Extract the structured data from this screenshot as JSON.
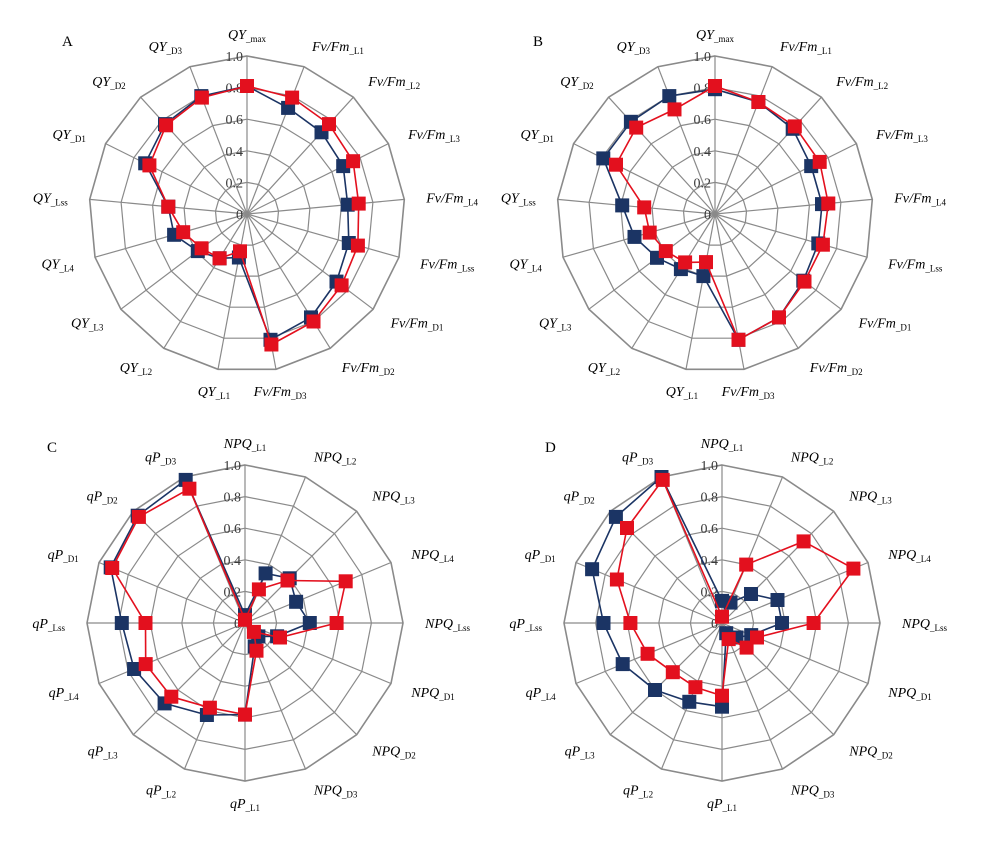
{
  "figure": {
    "series_colors": {
      "dark": "#1b3464",
      "red": "#e3101e"
    },
    "grid_color": "#8a8a8a"
  },
  "chart_data": [
    {
      "type": "radar",
      "panel": "A",
      "rlim": [
        0,
        1
      ],
      "ticks": [
        "0",
        "0.2",
        "0.4",
        "0.6",
        "0.8",
        "1.0"
      ],
      "axes": [
        {
          "main": "QY",
          "sub": "_max"
        },
        {
          "main": "Fv/Fm",
          "sub": "_L1"
        },
        {
          "main": "Fv/Fm",
          "sub": "_L2"
        },
        {
          "main": "Fv/Fm",
          "sub": "_L3"
        },
        {
          "main": "Fv/Fm",
          "sub": "_L4"
        },
        {
          "main": "Fv/Fm",
          "sub": "_Lss"
        },
        {
          "main": "Fv/Fm",
          "sub": "_D1"
        },
        {
          "main": "Fv/Fm",
          "sub": "_D2"
        },
        {
          "main": "Fv/Fm",
          "sub": "_D3"
        },
        {
          "main": "QY",
          "sub": "_L1"
        },
        {
          "main": "QY",
          "sub": "_L2"
        },
        {
          "main": "QY",
          "sub": "_L3"
        },
        {
          "main": "QY",
          "sub": "_L4"
        },
        {
          "main": "QY",
          "sub": "_Lss"
        },
        {
          "main": "QY",
          "sub": "_D1"
        },
        {
          "main": "QY",
          "sub": "_D2"
        },
        {
          "main": "QY",
          "sub": "_D3"
        }
      ],
      "series": [
        {
          "color": "dark",
          "values": [
            0.81,
            0.72,
            0.7,
            0.68,
            0.64,
            0.67,
            0.71,
            0.77,
            0.81,
            0.28,
            0.33,
            0.39,
            0.48,
            0.5,
            0.72,
            0.77,
            0.8
          ]
        },
        {
          "color": "red",
          "values": [
            0.81,
            0.79,
            0.77,
            0.75,
            0.71,
            0.73,
            0.75,
            0.8,
            0.84,
            0.24,
            0.33,
            0.36,
            0.42,
            0.5,
            0.69,
            0.76,
            0.79
          ]
        }
      ]
    },
    {
      "type": "radar",
      "panel": "B",
      "rlim": [
        0,
        1
      ],
      "ticks": [
        "0",
        "0.2",
        "0.4",
        "0.6",
        "0.8",
        "1.0"
      ],
      "axes": [
        {
          "main": "QY",
          "sub": "_max"
        },
        {
          "main": "Fv/Fm",
          "sub": "_L1"
        },
        {
          "main": "Fv/Fm",
          "sub": "_L2"
        },
        {
          "main": "Fv/Fm",
          "sub": "_L3"
        },
        {
          "main": "Fv/Fm",
          "sub": "_L4"
        },
        {
          "main": "Fv/Fm",
          "sub": "_Lss"
        },
        {
          "main": "Fv/Fm",
          "sub": "_D1"
        },
        {
          "main": "Fv/Fm",
          "sub": "_D2"
        },
        {
          "main": "Fv/Fm",
          "sub": "_D3"
        },
        {
          "main": "QY",
          "sub": "_L1"
        },
        {
          "main": "QY",
          "sub": "_L2"
        },
        {
          "main": "QY",
          "sub": "_L3"
        },
        {
          "main": "QY",
          "sub": "_L4"
        },
        {
          "main": "QY",
          "sub": "_Lss"
        },
        {
          "main": "QY",
          "sub": "_D1"
        },
        {
          "main": "QY",
          "sub": "_D2"
        },
        {
          "main": "QY",
          "sub": "_D3"
        }
      ],
      "series": [
        {
          "color": "dark",
          "values": [
            0.79,
            0.76,
            0.73,
            0.68,
            0.68,
            0.68,
            0.7,
            0.77,
            0.81,
            0.4,
            0.41,
            0.46,
            0.53,
            0.59,
            0.79,
            0.79,
            0.8
          ]
        },
        {
          "color": "red",
          "values": [
            0.81,
            0.76,
            0.75,
            0.74,
            0.72,
            0.71,
            0.71,
            0.77,
            0.81,
            0.31,
            0.36,
            0.39,
            0.43,
            0.45,
            0.7,
            0.74,
            0.71
          ]
        }
      ]
    },
    {
      "type": "radar",
      "panel": "C",
      "rlim": [
        0,
        1
      ],
      "ticks": [
        "0",
        "0.2",
        "0.4",
        "0.6",
        "0.8",
        "1.0"
      ],
      "axes": [
        {
          "main": "NPQ",
          "sub": "_L1"
        },
        {
          "main": "NPQ",
          "sub": "_L2"
        },
        {
          "main": "NPQ",
          "sub": "_L3"
        },
        {
          "main": "NPQ",
          "sub": "_L4"
        },
        {
          "main": "NPQ",
          "sub": "_Lss"
        },
        {
          "main": "NPQ",
          "sub": "_D1"
        },
        {
          "main": "NPQ",
          "sub": "_D2"
        },
        {
          "main": "NPQ",
          "sub": "_D3"
        },
        {
          "main": "qP",
          "sub": "_L1"
        },
        {
          "main": "qP",
          "sub": "_L2"
        },
        {
          "main": "qP",
          "sub": "_L3"
        },
        {
          "main": "qP",
          "sub": "_L4"
        },
        {
          "main": "qP",
          "sub": "_Lss"
        },
        {
          "main": "qP",
          "sub": "_D1"
        },
        {
          "main": "qP",
          "sub": "_D2"
        },
        {
          "main": "qP",
          "sub": "_D3"
        }
      ],
      "series": [
        {
          "color": "dark",
          "values": [
            0.05,
            0.34,
            0.4,
            0.35,
            0.41,
            0.22,
            0.12,
            0.16,
            0.58,
            0.63,
            0.72,
            0.76,
            0.78,
            0.92,
            0.96,
            0.98
          ]
        },
        {
          "color": "red",
          "values": [
            0.02,
            0.23,
            0.38,
            0.69,
            0.58,
            0.24,
            0.08,
            0.19,
            0.58,
            0.58,
            0.66,
            0.68,
            0.63,
            0.91,
            0.95,
            0.92
          ]
        }
      ]
    },
    {
      "type": "radar",
      "panel": "D",
      "rlim": [
        0,
        1
      ],
      "ticks": [
        "0",
        "0.2",
        "0.4",
        "0.6",
        "0.8",
        "1.0"
      ],
      "axes": [
        {
          "main": "NPQ",
          "sub": "_L1"
        },
        {
          "main": "NPQ",
          "sub": "_L2"
        },
        {
          "main": "NPQ",
          "sub": "_L3"
        },
        {
          "main": "NPQ",
          "sub": "_L4"
        },
        {
          "main": "NPQ",
          "sub": "_Lss"
        },
        {
          "main": "NPQ",
          "sub": "_D1"
        },
        {
          "main": "NPQ",
          "sub": "_D2"
        },
        {
          "main": "NPQ",
          "sub": "_D3"
        },
        {
          "main": "qP",
          "sub": "_L1"
        },
        {
          "main": "qP",
          "sub": "_L2"
        },
        {
          "main": "qP",
          "sub": "_L3"
        },
        {
          "main": "qP",
          "sub": "_L4"
        },
        {
          "main": "qP",
          "sub": "_Lss"
        },
        {
          "main": "qP",
          "sub": "_D1"
        },
        {
          "main": "qP",
          "sub": "_D2"
        },
        {
          "main": "qP",
          "sub": "_D3"
        }
      ],
      "series": [
        {
          "color": "dark",
          "values": [
            0.14,
            0.14,
            0.26,
            0.38,
            0.38,
            0.2,
            0.13,
            0.07,
            0.53,
            0.54,
            0.6,
            0.68,
            0.75,
            0.89,
            0.95,
            1.0
          ]
        },
        {
          "color": "red",
          "values": [
            0.04,
            0.4,
            0.73,
            0.9,
            0.58,
            0.24,
            0.22,
            0.11,
            0.46,
            0.44,
            0.44,
            0.51,
            0.58,
            0.72,
            0.85,
            0.98
          ]
        }
      ]
    }
  ]
}
